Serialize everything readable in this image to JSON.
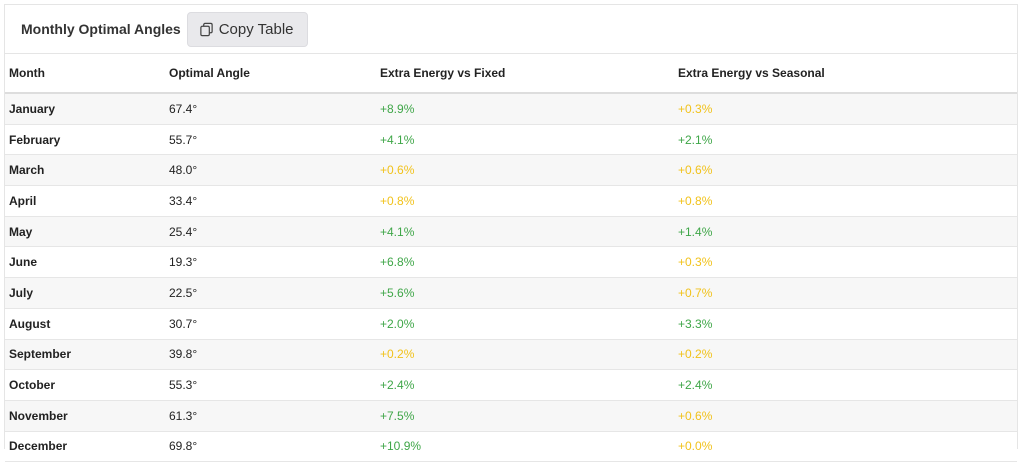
{
  "header": {
    "title": "Monthly Optimal Angles",
    "copy_label": "Copy Table",
    "copy_icon": "copy-icon"
  },
  "colors": {
    "good": "#3fa648",
    "low": "#f1c21b"
  },
  "table": {
    "columns": [
      "Month",
      "Optimal Angle",
      "Extra Energy vs Fixed",
      "Extra Energy vs Seasonal"
    ],
    "rows": [
      {
        "month": "January",
        "angle": "67.4°",
        "fixed": "+8.9%",
        "fixed_level": "green",
        "seasonal": "+0.3%",
        "seasonal_level": "yellow"
      },
      {
        "month": "February",
        "angle": "55.7°",
        "fixed": "+4.1%",
        "fixed_level": "green",
        "seasonal": "+2.1%",
        "seasonal_level": "green"
      },
      {
        "month": "March",
        "angle": "48.0°",
        "fixed": "+0.6%",
        "fixed_level": "yellow",
        "seasonal": "+0.6%",
        "seasonal_level": "yellow"
      },
      {
        "month": "April",
        "angle": "33.4°",
        "fixed": "+0.8%",
        "fixed_level": "yellow",
        "seasonal": "+0.8%",
        "seasonal_level": "yellow"
      },
      {
        "month": "May",
        "angle": "25.4°",
        "fixed": "+4.1%",
        "fixed_level": "green",
        "seasonal": "+1.4%",
        "seasonal_level": "green"
      },
      {
        "month": "June",
        "angle": "19.3°",
        "fixed": "+6.8%",
        "fixed_level": "green",
        "seasonal": "+0.3%",
        "seasonal_level": "yellow"
      },
      {
        "month": "July",
        "angle": "22.5°",
        "fixed": "+5.6%",
        "fixed_level": "green",
        "seasonal": "+0.7%",
        "seasonal_level": "yellow"
      },
      {
        "month": "August",
        "angle": "30.7°",
        "fixed": "+2.0%",
        "fixed_level": "green",
        "seasonal": "+3.3%",
        "seasonal_level": "green"
      },
      {
        "month": "September",
        "angle": "39.8°",
        "fixed": "+0.2%",
        "fixed_level": "yellow",
        "seasonal": "+0.2%",
        "seasonal_level": "yellow"
      },
      {
        "month": "October",
        "angle": "55.3°",
        "fixed": "+2.4%",
        "fixed_level": "green",
        "seasonal": "+2.4%",
        "seasonal_level": "green"
      },
      {
        "month": "November",
        "angle": "61.3°",
        "fixed": "+7.5%",
        "fixed_level": "green",
        "seasonal": "+0.6%",
        "seasonal_level": "yellow"
      },
      {
        "month": "December",
        "angle": "69.8°",
        "fixed": "+10.9%",
        "fixed_level": "green",
        "seasonal": "+0.0%",
        "seasonal_level": "yellow"
      }
    ]
  }
}
